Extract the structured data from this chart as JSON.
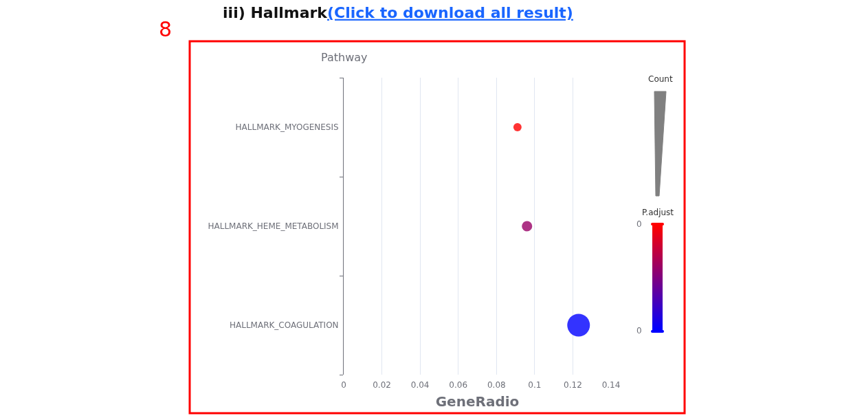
{
  "chart_data": {
    "type": "bubble",
    "title": "iii) Hallmark",
    "subtitle": "(Click to download all result)",
    "xlabel": "GeneRadio",
    "ylabel": "Pathway",
    "legend_title": "Count",
    "clabel": "P.adjust",
    "categories": [
      "HALLMARK_MYOGENESIS",
      "HALLMARK_HEME_METABOLISM",
      "HALLMARK_COAGULATION"
    ],
    "orientation": "horizontal",
    "series": [
      {
        "values": [
          0.091,
          0.096,
          0.123
        ],
        "sizes": [
          0.13,
          0.21,
          1
        ],
        "colors": [
          "#ff3333",
          "#ad3385",
          "#3333ff"
        ]
      }
    ],
    "xlim": [
      0,
      0.14
    ],
    "xticks": [
      0,
      0.02,
      0.04,
      0.06,
      0.08,
      0.1,
      0.12,
      0.14
    ],
    "grid": "x",
    "annotations": [
      "8",
      "0",
      "0"
    ]
  }
}
